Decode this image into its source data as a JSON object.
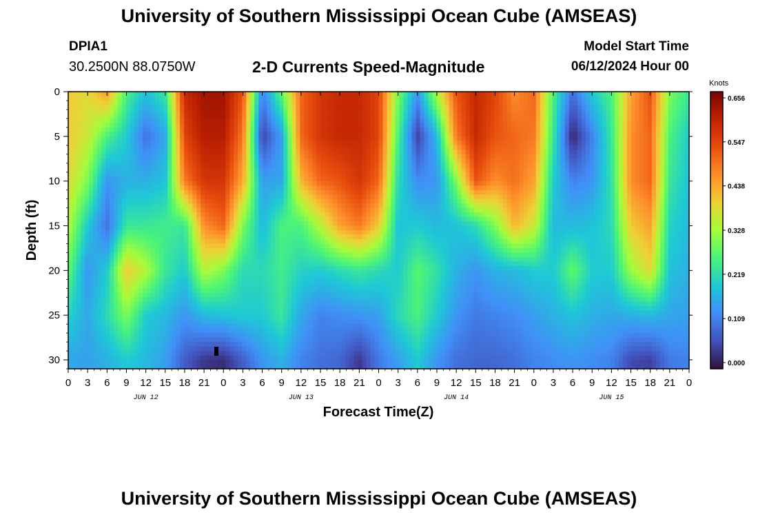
{
  "header": {
    "title": "University of Southern Mississippi Ocean Cube (AMSEAS)",
    "station_id": "DPIA1",
    "station_coords": "30.2500N  88.0750W",
    "subtitle": "2-D Currents Speed-Magnitude",
    "model_start_label": "Model Start Time",
    "model_start_value": "06/12/2024 Hour 00"
  },
  "footer": {
    "title": "University of Southern Mississippi Ocean Cube (AMSEAS)"
  },
  "chart_data": {
    "type": "heatmap",
    "title": "2-D Currents Speed-Magnitude",
    "xlabel": "Forecast Time(Z)",
    "ylabel": "Depth (ft)",
    "x_range_hours": [
      0,
      96
    ],
    "y_range_ft": [
      0,
      31
    ],
    "x_ticks": [
      {
        "hour": 0,
        "label": "0"
      },
      {
        "hour": 3,
        "label": "3"
      },
      {
        "hour": 6,
        "label": "6"
      },
      {
        "hour": 9,
        "label": "9"
      },
      {
        "hour": 12,
        "label": "12"
      },
      {
        "hour": 15,
        "label": "15"
      },
      {
        "hour": 18,
        "label": "18"
      },
      {
        "hour": 21,
        "label": "21"
      },
      {
        "hour": 24,
        "label": "0"
      },
      {
        "hour": 27,
        "label": "3"
      },
      {
        "hour": 30,
        "label": "6"
      },
      {
        "hour": 33,
        "label": "9"
      },
      {
        "hour": 36,
        "label": "12"
      },
      {
        "hour": 39,
        "label": "15"
      },
      {
        "hour": 42,
        "label": "18"
      },
      {
        "hour": 45,
        "label": "21"
      },
      {
        "hour": 48,
        "label": "0"
      },
      {
        "hour": 51,
        "label": "3"
      },
      {
        "hour": 54,
        "label": "6"
      },
      {
        "hour": 57,
        "label": "9"
      },
      {
        "hour": 60,
        "label": "12"
      },
      {
        "hour": 63,
        "label": "15"
      },
      {
        "hour": 66,
        "label": "18"
      },
      {
        "hour": 69,
        "label": "21"
      },
      {
        "hour": 72,
        "label": "0"
      },
      {
        "hour": 75,
        "label": "3"
      },
      {
        "hour": 78,
        "label": "6"
      },
      {
        "hour": 81,
        "label": "9"
      },
      {
        "hour": 84,
        "label": "12"
      },
      {
        "hour": 87,
        "label": "15"
      },
      {
        "hour": 90,
        "label": "18"
      },
      {
        "hour": 93,
        "label": "21"
      },
      {
        "hour": 96,
        "label": "0"
      }
    ],
    "date_labels": [
      {
        "hour": 12,
        "label": "JUN 12"
      },
      {
        "hour": 36,
        "label": "JUN 13"
      },
      {
        "hour": 60,
        "label": "JUN 14"
      },
      {
        "hour": 84,
        "label": "JUN 15"
      }
    ],
    "y_ticks": [
      0,
      5,
      10,
      15,
      20,
      25,
      30
    ],
    "colorbar": {
      "title": "Knots",
      "range": [
        0,
        0.656
      ],
      "tick_values": [
        0.0,
        0.109,
        0.219,
        0.328,
        0.438,
        0.547,
        0.656
      ],
      "tick_labels": [
        "0.000",
        "0.109",
        "0.219",
        "0.328",
        "0.438",
        "0.547",
        "0.656"
      ]
    },
    "speed_grid": {
      "hours": [
        0,
        3,
        6,
        9,
        12,
        15,
        18,
        21,
        24,
        27,
        30,
        33,
        36,
        39,
        42,
        45,
        48,
        51,
        54,
        57,
        60,
        63,
        66,
        69,
        72,
        75,
        78,
        81,
        84,
        87,
        90,
        93,
        96
      ],
      "depths_ft": [
        0,
        5,
        10,
        15,
        20,
        25,
        30
      ],
      "values_knots": [
        [
          0.4,
          0.4,
          0.38,
          0.34,
          0.28,
          0.21,
          0.16
        ],
        [
          0.38,
          0.36,
          0.3,
          0.2,
          0.14,
          0.16,
          0.15
        ],
        [
          0.45,
          0.26,
          0.14,
          0.1,
          0.2,
          0.22,
          0.17
        ],
        [
          0.26,
          0.2,
          0.17,
          0.24,
          0.4,
          0.3,
          0.2
        ],
        [
          0.19,
          0.1,
          0.17,
          0.24,
          0.34,
          0.2,
          0.18
        ],
        [
          0.24,
          0.16,
          0.19,
          0.25,
          0.24,
          0.18,
          0.15
        ],
        [
          0.58,
          0.54,
          0.48,
          0.24,
          0.2,
          0.14,
          0.08
        ],
        [
          0.62,
          0.6,
          0.56,
          0.46,
          0.34,
          0.18,
          0.04
        ],
        [
          0.62,
          0.6,
          0.56,
          0.5,
          0.3,
          0.19,
          0.03
        ],
        [
          0.52,
          0.48,
          0.43,
          0.3,
          0.22,
          0.2,
          0.08
        ],
        [
          0.12,
          0.05,
          0.15,
          0.18,
          0.22,
          0.2,
          0.14
        ],
        [
          0.28,
          0.15,
          0.16,
          0.26,
          0.25,
          0.24,
          0.17
        ],
        [
          0.5,
          0.5,
          0.42,
          0.26,
          0.21,
          0.16,
          0.12
        ],
        [
          0.56,
          0.56,
          0.5,
          0.34,
          0.2,
          0.12,
          0.1
        ],
        [
          0.58,
          0.58,
          0.52,
          0.44,
          0.22,
          0.13,
          0.09
        ],
        [
          0.58,
          0.58,
          0.56,
          0.48,
          0.24,
          0.14,
          0.04
        ],
        [
          0.54,
          0.54,
          0.5,
          0.4,
          0.22,
          0.15,
          0.11
        ],
        [
          0.3,
          0.26,
          0.22,
          0.19,
          0.2,
          0.22,
          0.15
        ],
        [
          0.14,
          0.05,
          0.13,
          0.2,
          0.27,
          0.26,
          0.2
        ],
        [
          0.34,
          0.18,
          0.14,
          0.18,
          0.23,
          0.2,
          0.14
        ],
        [
          0.52,
          0.48,
          0.3,
          0.19,
          0.17,
          0.14,
          0.1
        ],
        [
          0.58,
          0.58,
          0.52,
          0.22,
          0.14,
          0.11,
          0.09
        ],
        [
          0.54,
          0.52,
          0.46,
          0.3,
          0.17,
          0.12,
          0.09
        ],
        [
          0.46,
          0.5,
          0.49,
          0.42,
          0.18,
          0.13,
          0.1
        ],
        [
          0.5,
          0.48,
          0.44,
          0.36,
          0.2,
          0.15,
          0.12
        ],
        [
          0.26,
          0.24,
          0.2,
          0.18,
          0.2,
          0.17,
          0.13
        ],
        [
          0.1,
          0.02,
          0.12,
          0.18,
          0.28,
          0.19,
          0.14
        ],
        [
          0.2,
          0.12,
          0.14,
          0.19,
          0.2,
          0.17,
          0.13
        ],
        [
          0.26,
          0.24,
          0.23,
          0.22,
          0.2,
          0.16,
          0.12
        ],
        [
          0.44,
          0.46,
          0.46,
          0.4,
          0.32,
          0.17,
          0.06
        ],
        [
          0.52,
          0.5,
          0.5,
          0.44,
          0.38,
          0.18,
          0.05
        ],
        [
          0.3,
          0.26,
          0.24,
          0.21,
          0.19,
          0.16,
          0.11
        ],
        [
          0.24,
          0.2,
          0.19,
          0.18,
          0.17,
          0.15,
          0.12
        ]
      ]
    }
  }
}
